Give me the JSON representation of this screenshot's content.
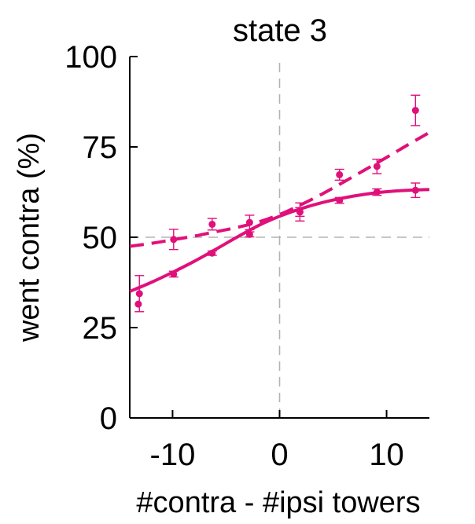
{
  "chart_data": {
    "type": "line",
    "title": "state 3",
    "xlabel": "#contra - #ipsi towers",
    "ylabel": "went contra (%)",
    "xlim": [
      -14,
      14
    ],
    "ylim": [
      0,
      100
    ],
    "xticks": [
      -10,
      0,
      10
    ],
    "yticks": [
      0,
      25,
      50,
      75,
      100
    ],
    "color": "#e0107a",
    "reference_lines": [
      {
        "axis": "y",
        "value": 50,
        "style": "dashed",
        "color": "#b3b3b3"
      },
      {
        "axis": "x",
        "value": 0,
        "style": "dashed",
        "color": "#b3b3b3"
      }
    ],
    "series": [
      {
        "style": "solid-fit",
        "x": [
          -14,
          -12,
          -10,
          -8,
          -6,
          -4,
          -2,
          0,
          2,
          4,
          6,
          8,
          10,
          12,
          14
        ],
        "y": [
          35,
          37.5,
          40.3,
          43.3,
          46.6,
          50.0,
          53.2,
          55.8,
          57.9,
          59.6,
          60.9,
          61.9,
          62.6,
          63.0,
          63.2
        ]
      },
      {
        "style": "dashed-fit",
        "x": [
          -14,
          -12,
          -10,
          -8,
          -6,
          -4,
          -2,
          0,
          2,
          4,
          6,
          8,
          10,
          12,
          14
        ],
        "y": [
          47.5,
          48.3,
          49.3,
          50.3,
          51.5,
          52.7,
          54.2,
          56.3,
          59.0,
          62.0,
          65.3,
          68.7,
          72.1,
          75.6,
          79.0
        ]
      },
      {
        "style": "points-solid",
        "x": [
          -13.2,
          -9.9,
          -6.3,
          -2.8,
          1.9,
          5.6,
          9.1,
          12.7
        ],
        "y": [
          31.5,
          39.8,
          45.6,
          50.8,
          57.0,
          60.2,
          62.5,
          63.0
        ],
        "err": [
          0,
          0.8,
          0.6,
          0.7,
          1.2,
          0.8,
          0.9,
          2.0
        ]
      },
      {
        "style": "points-dashed",
        "x": [
          -13.1,
          -9.9,
          -6.3,
          -2.8,
          1.9,
          5.6,
          9.1,
          12.7
        ],
        "y": [
          34.4,
          49.4,
          53.6,
          54.1,
          57.0,
          67.3,
          69.6,
          85.1
        ],
        "err": [
          5.0,
          2.8,
          1.6,
          2.0,
          2.5,
          1.5,
          2.0,
          4.2
        ]
      }
    ]
  }
}
